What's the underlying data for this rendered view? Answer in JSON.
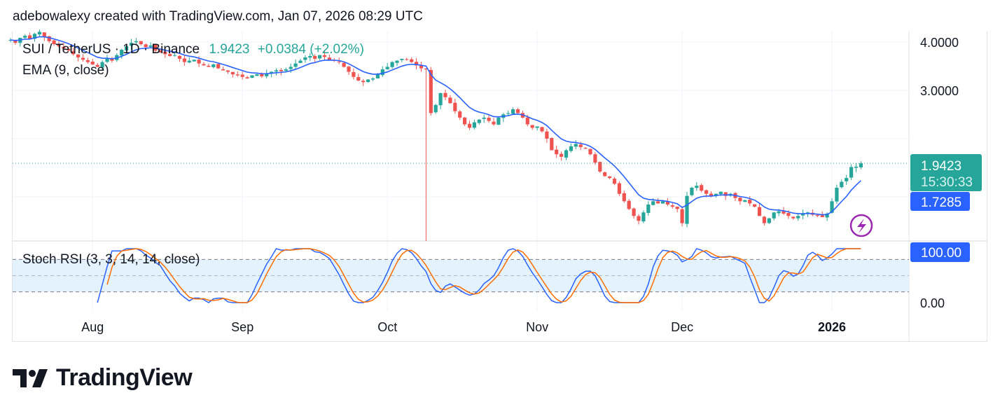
{
  "header": {
    "attribution": "adebowalexy created with TradingView.com, Jan 07, 2026 08:29 UTC"
  },
  "legend": {
    "symbol": "SUI / TetherUS · 1D · Binance",
    "last": "1.9423",
    "change": "+0.0384 (+2.02%)",
    "ema": "EMA (9, close)",
    "stoch": "Stoch RSI (3, 3, 14, 14, close)"
  },
  "price_axis": {
    "ticks": [
      "4.0000",
      "3.0000"
    ],
    "last_label": "1.9423",
    "countdown": "15:30:33",
    "ema_label": "1.7285",
    "stoch_label": "100.00",
    "stoch_zero": "0.00"
  },
  "time_axis": [
    "Aug",
    "Sep",
    "Oct",
    "Nov",
    "Dec",
    "2026"
  ],
  "logo": {
    "text": "TradingView"
  },
  "colors": {
    "up": "#26a69a",
    "down": "#ef5350",
    "ema": "#2962ff",
    "k": "#2962ff",
    "d": "#ff6d00",
    "band": "#e3f2fd"
  },
  "chart_data": {
    "type": "candlestick",
    "title": "SUI / TetherUS · 1D · Binance",
    "scale": "log",
    "start_date": "2025-07-15",
    "ylim": [
      1.2,
      4.3
    ],
    "closes": [
      4.05,
      3.98,
      4.1,
      4.15,
      4.08,
      4.2,
      4.25,
      4.12,
      4.02,
      3.95,
      3.9,
      3.85,
      3.8,
      3.72,
      3.65,
      3.6,
      3.55,
      3.5,
      3.45,
      3.55,
      3.62,
      3.58,
      3.7,
      3.82,
      3.9,
      3.98,
      4.02,
      3.95,
      3.88,
      3.92,
      3.8,
      3.76,
      3.72,
      3.68,
      3.7,
      3.62,
      3.55,
      3.58,
      3.6,
      3.52,
      3.48,
      3.45,
      3.5,
      3.42,
      3.38,
      3.35,
      3.3,
      3.28,
      3.25,
      3.22,
      3.28,
      3.3,
      3.26,
      3.32,
      3.35,
      3.38,
      3.36,
      3.4,
      3.45,
      3.52,
      3.58,
      3.65,
      3.68,
      3.62,
      3.7,
      3.66,
      3.6,
      3.58,
      3.55,
      3.45,
      3.35,
      3.25,
      3.18,
      3.15,
      3.2,
      3.22,
      3.3,
      3.4,
      3.45,
      3.55,
      3.58,
      3.62,
      3.6,
      3.55,
      3.48,
      3.42,
      3.4,
      2.62,
      2.75,
      2.95,
      2.88,
      2.78,
      2.65,
      2.55,
      2.45,
      2.4,
      2.48,
      2.52,
      2.55,
      2.5,
      2.45,
      2.55,
      2.6,
      2.62,
      2.68,
      2.62,
      2.55,
      2.45,
      2.4,
      2.42,
      2.35,
      2.25,
      2.1,
      2.05,
      2.02,
      2.1,
      2.15,
      2.18,
      2.14,
      2.12,
      2.05,
      1.95,
      1.85,
      1.8,
      1.78,
      1.72,
      1.62,
      1.55,
      1.48,
      1.42,
      1.38,
      1.45,
      1.52,
      1.55,
      1.53,
      1.55,
      1.52,
      1.5,
      1.48,
      1.36,
      1.6,
      1.68,
      1.7,
      1.65,
      1.62,
      1.6,
      1.62,
      1.64,
      1.6,
      1.62,
      1.58,
      1.55,
      1.56,
      1.53,
      1.5,
      1.42,
      1.36,
      1.4,
      1.45,
      1.46,
      1.44,
      1.42,
      1.4,
      1.42,
      1.44,
      1.45,
      1.43,
      1.42,
      1.41,
      1.44,
      1.55,
      1.68,
      1.74,
      1.78,
      1.9,
      1.904,
      1.9423
    ],
    "ema_period": 9,
    "stoch_rsi": {
      "k": 3,
      "d": 3,
      "rsi": 14,
      "stoch": 14,
      "bands": [
        20,
        50,
        80
      ],
      "ylim": [
        0,
        100
      ]
    }
  }
}
